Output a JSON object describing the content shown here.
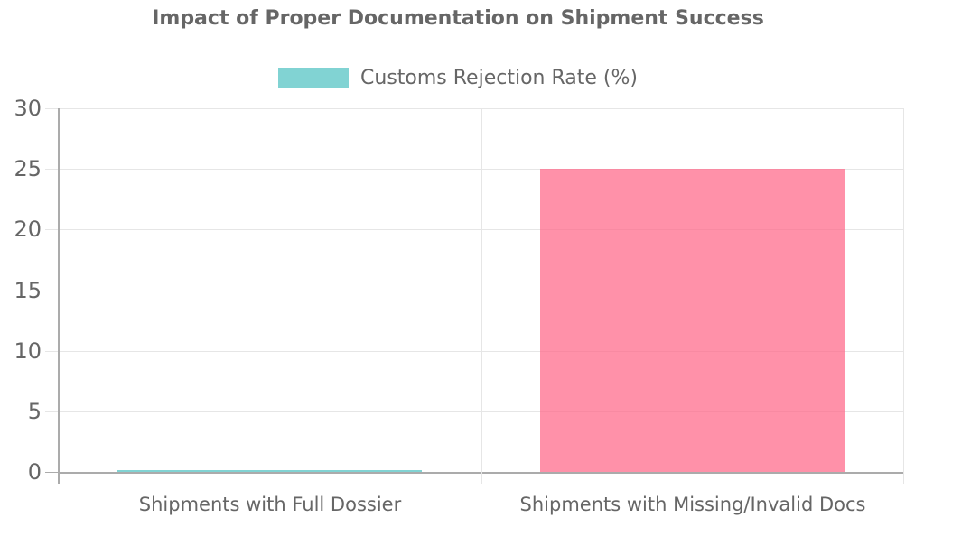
{
  "chart_data": {
    "type": "bar",
    "title": "Impact of Proper Documentation on Shipment Success",
    "legend": [
      {
        "label": "Customs Rejection Rate (%)",
        "color": "rgba(75,192,192,0.7)"
      }
    ],
    "legend_position": "top",
    "categories": [
      "Shipments with Full Dossier",
      "Shipments with Missing/Invalid Docs"
    ],
    "series": [
      {
        "name": "Customs Rejection Rate (%)",
        "values": [
          0.1,
          25
        ],
        "colors": [
          "rgba(75,192,192,0.7)",
          "rgba(255,99,132,0.7)"
        ]
      }
    ],
    "xlabel": "",
    "ylabel": "",
    "ylim": [
      0,
      30
    ],
    "yticks": [
      0,
      5,
      10,
      15,
      20,
      25,
      30
    ],
    "grid": true
  },
  "style": {
    "background": "#ffffff",
    "text_color": "#666666",
    "grid_color": "#e6e6e6",
    "zero_line_color": "#ababab"
  }
}
